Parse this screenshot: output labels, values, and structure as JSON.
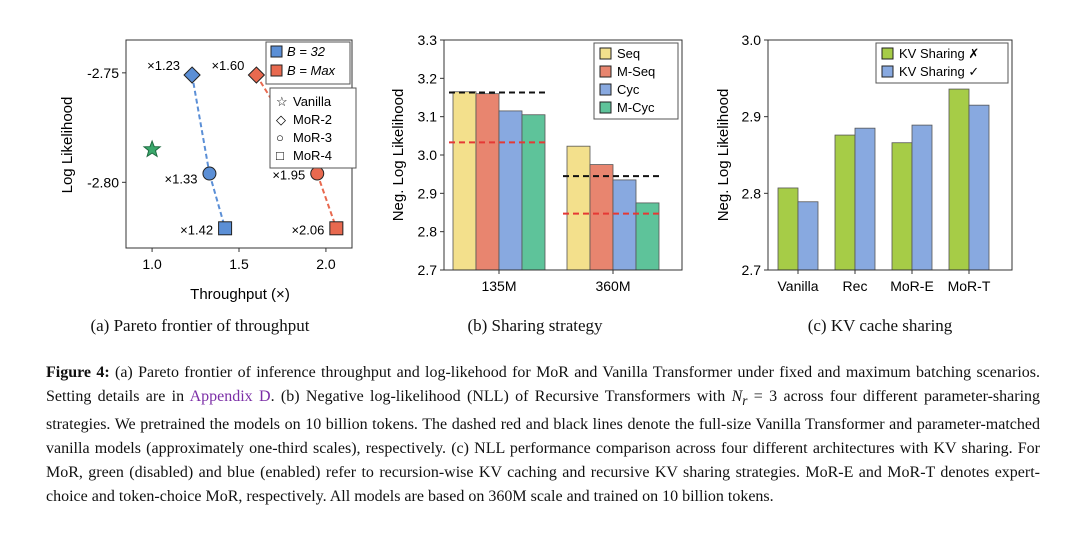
{
  "panels": {
    "a": {
      "caption": "(a) Pareto frontier of throughput",
      "xlabel": "Throughput (×)",
      "ylabel": "Log Likelihood",
      "xticks": [
        "1.0",
        "1.5",
        "2.0"
      ],
      "yticks": [
        "-2.75",
        "-2.80"
      ],
      "legend_batch": [
        {
          "label": "B = 32",
          "color": "#5b8fd6"
        },
        {
          "label": "B = Max",
          "color": "#e8694f"
        }
      ],
      "legend_models": [
        {
          "symbol": "☆",
          "label": "Vanilla"
        },
        {
          "symbol": "◇",
          "label": "MoR-2"
        },
        {
          "symbol": "○",
          "label": "MoR-3"
        },
        {
          "symbol": "□",
          "label": "MoR-4"
        }
      ],
      "point_labels": {
        "b32_mor2": "×1.23",
        "bmax_mor2": "×1.60",
        "b32_mor3": "×1.33",
        "bmax_mor3": "×1.95",
        "b32_mor4": "×1.42",
        "bmax_mor4": "×2.06"
      }
    },
    "b": {
      "caption": "(b) Sharing strategy",
      "ylabel": "Neg. Log Likelihood",
      "yticks": [
        "3.3",
        "3.2",
        "3.1",
        "3.0",
        "2.9",
        "2.8",
        "2.7"
      ],
      "legend": [
        {
          "label": "Seq",
          "color": "#f3e08c"
        },
        {
          "label": "M-Seq",
          "color": "#e8856f"
        },
        {
          "label": "Cyc",
          "color": "#88a9e0"
        },
        {
          "label": "M-Cyc",
          "color": "#5ec39a"
        }
      ]
    },
    "c": {
      "caption": "(c) KV cache sharing",
      "ylabel": "Neg. Log Likelihood",
      "yticks": [
        "3.0",
        "2.9",
        "2.8",
        "2.7"
      ],
      "legend": [
        {
          "label": "KV Sharing ✗",
          "color": "#a6cc47"
        },
        {
          "label": "KV Sharing ✓",
          "color": "#88a9e0"
        }
      ]
    }
  },
  "chart_data": [
    {
      "type": "scatter",
      "title": "",
      "xlabel": "Throughput (×)",
      "ylabel": "Log Likelihood",
      "xlim": [
        0.85,
        2.15
      ],
      "ylim": [
        -2.83,
        -2.735
      ],
      "series": [
        {
          "name": "Vanilla",
          "points": [
            {
              "x": 1.0,
              "y": -2.785,
              "marker": "star"
            }
          ]
        },
        {
          "name": "B = 32",
          "points": [
            {
              "x": 1.23,
              "y": -2.751,
              "marker": "diamond"
            },
            {
              "x": 1.33,
              "y": -2.796,
              "marker": "circle"
            },
            {
              "x": 1.42,
              "y": -2.821,
              "marker": "square"
            }
          ]
        },
        {
          "name": "B = Max",
          "points": [
            {
              "x": 1.6,
              "y": -2.751,
              "marker": "diamond"
            },
            {
              "x": 1.95,
              "y": -2.796,
              "marker": "circle"
            },
            {
              "x": 2.06,
              "y": -2.821,
              "marker": "square"
            }
          ]
        }
      ]
    },
    {
      "type": "bar",
      "title": "",
      "ylabel": "Neg. Log Likelihood",
      "ylim": [
        2.7,
        3.3
      ],
      "categories": [
        "135M",
        "360M"
      ],
      "series": [
        {
          "name": "Seq",
          "values": [
            3.165,
            3.023
          ]
        },
        {
          "name": "M-Seq",
          "values": [
            3.16,
            2.975
          ]
        },
        {
          "name": "Cyc",
          "values": [
            3.115,
            2.935
          ]
        },
        {
          "name": "M-Cyc",
          "values": [
            3.105,
            2.875
          ]
        }
      ],
      "reference_lines": [
        {
          "category": "135M",
          "black": 3.163,
          "red": 3.033
        },
        {
          "category": "360M",
          "black": 2.945,
          "red": 2.847
        }
      ]
    },
    {
      "type": "bar",
      "title": "",
      "ylabel": "Neg. Log Likelihood",
      "ylim": [
        2.7,
        3.0
      ],
      "categories": [
        "Vanilla",
        "Rec",
        "MoR-E",
        "MoR-T"
      ],
      "series": [
        {
          "name": "KV Sharing ✗",
          "values": [
            2.807,
            2.876,
            2.866,
            2.936
          ]
        },
        {
          "name": "KV Sharing ✓",
          "values": [
            2.789,
            2.885,
            2.889,
            2.915
          ]
        }
      ]
    }
  ],
  "caption": {
    "label": "Figure 4:",
    "part1": " (a) Pareto frontier of inference throughput and log-likehood for MoR and Vanilla Transformer under fixed and maximum batching scenarios. Setting details are in ",
    "link": "Appendix D",
    "part2": ". (b) Negative log-likelihood (NLL) of Recursive Transformers with ",
    "math": "N",
    "math_sub": "r",
    "math_rest": " = 3",
    "part3": " across four different parameter-sharing strategies. We pretrained the models on 10 billion tokens. The dashed red and black lines denote the full-size Vanilla Transformer and parameter-matched vanilla models (approximately one-third scales), respectively. (c) NLL performance comparison across four different architectures with KV sharing. For MoR, green (disabled) and blue (enabled) refer to recursion-wise KV caching and recursive KV sharing strategies. MoR-E and MoR-T denotes expert-choice and token-choice MoR, respectively. All models are based on 360M scale and trained on 10 billion tokens."
  }
}
